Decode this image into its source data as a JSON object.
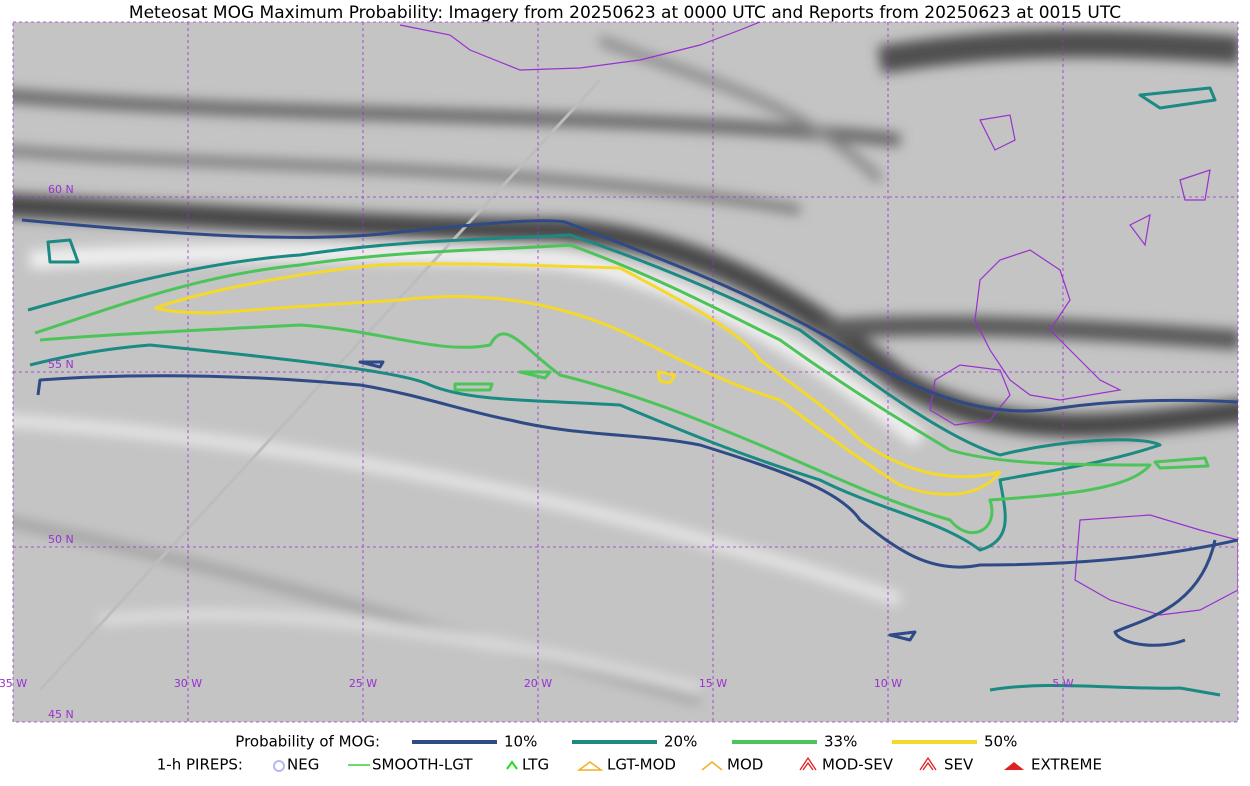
{
  "title": "Meteosat MOG Maximum Probability: Imagery from 20250623 at 0000 UTC and Reports from 20250623 at 0015 UTC",
  "map": {
    "lat_labels": [
      "60 N",
      "55 N",
      "50 N",
      "45 N"
    ],
    "lon_labels": [
      "35 W",
      "30 W",
      "25 W",
      "20 W",
      "15 W",
      "10 W",
      "5 W"
    ]
  },
  "legend": {
    "probability_label": "Probability of MOG:",
    "probability": [
      {
        "label": "10%",
        "color": "#2e4a87"
      },
      {
        "label": "20%",
        "color": "#1a8a82"
      },
      {
        "label": "33%",
        "color": "#4cc45a"
      },
      {
        "label": "50%",
        "color": "#f5d92a"
      }
    ],
    "pireps_label": "1-h PIREPS:",
    "pireps": [
      {
        "label": "NEG",
        "color": "#b8b8f0"
      },
      {
        "label": "SMOOTH-LGT",
        "color": "#3ccf3c"
      },
      {
        "label": "LTG",
        "color": "#22dd22"
      },
      {
        "label": "LGT-MOD",
        "color": "#f0b020"
      },
      {
        "label": "MOD",
        "color": "#f0b020"
      },
      {
        "label": "MOD-SEV",
        "color": "#e02020"
      },
      {
        "label": "SEV",
        "color": "#e02020"
      },
      {
        "label": "EXTREME",
        "color": "#e02020"
      }
    ]
  }
}
